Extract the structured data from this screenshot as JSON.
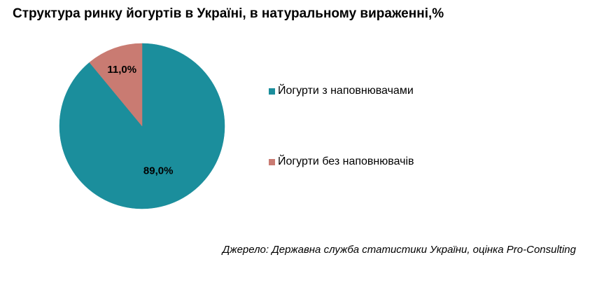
{
  "chart_data": {
    "type": "pie",
    "title": "Структура ринку йогуртів в Україні, в натуральному вираженні,%",
    "categories": [
      "Йогурти з наповнювачами",
      "Йогурти без наповнювачів"
    ],
    "values": [
      89.0,
      11.0
    ],
    "data_labels": [
      "89,0%",
      "11,0%"
    ],
    "colors": [
      "#1B8E9C",
      "#C97B72"
    ],
    "legend_placement": "right",
    "source": "Джерело: Державна служба статистики України, оцінка Pro-Consulting"
  }
}
